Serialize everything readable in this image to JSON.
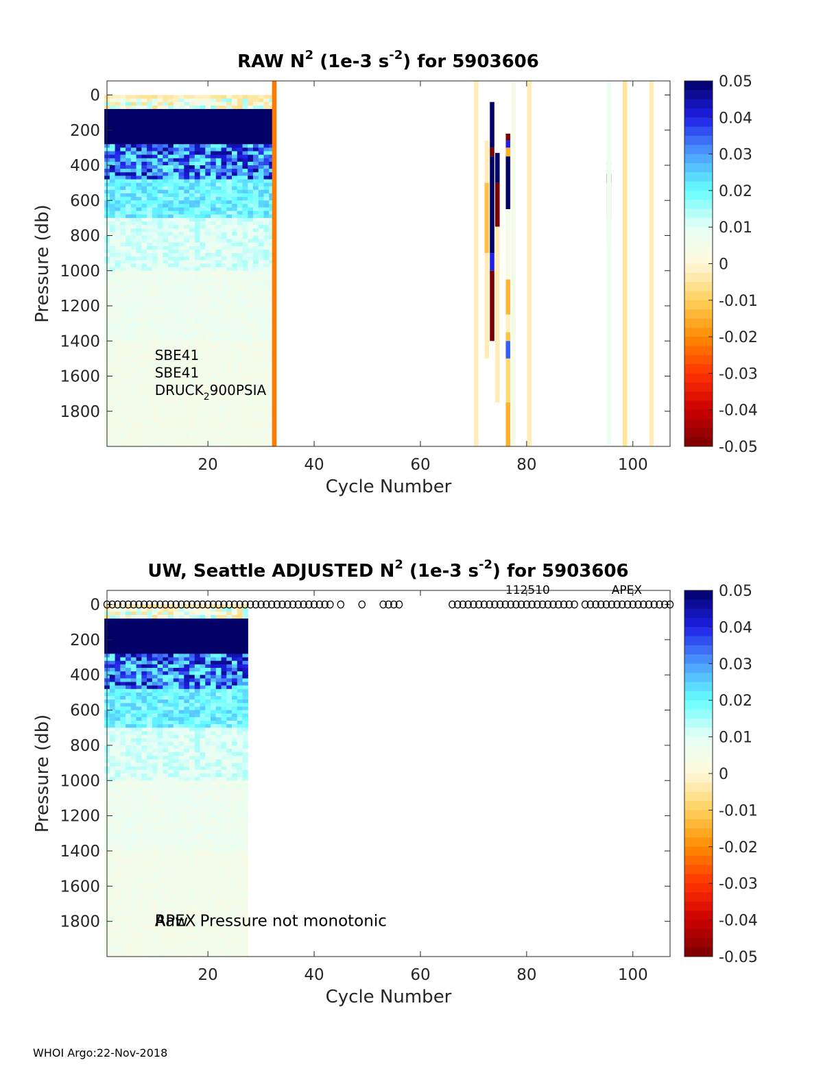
{
  "footer": "WHOI Argo:22-Nov-2018",
  "colorbar": {
    "ticks": [
      "0.05",
      "0.04",
      "0.03",
      "0.02",
      "0.01",
      "0",
      "-0.01",
      "-0.02",
      "-0.03",
      "-0.04",
      "-0.05"
    ],
    "stops": [
      "#7a0000",
      "#cc0000",
      "#ff3300",
      "#ff8c00",
      "#ffd15c",
      "#fff8dc",
      "#e6fff6",
      "#66ffff",
      "#4d9eff",
      "#1f1fe6",
      "#000066"
    ]
  },
  "chart_data": [
    {
      "type": "heatmap",
      "title_parts": [
        "RAW N",
        "2",
        " (1e-3 s",
        "-2",
        ") for 5903606"
      ],
      "xlabel": "Cycle Number",
      "ylabel": "Pressure (db)",
      "xlim": [
        1,
        107
      ],
      "ylim": [
        2000,
        -80
      ],
      "xticks": [
        "20",
        "40",
        "60",
        "80",
        "100"
      ],
      "yticks": [
        "0",
        "200",
        "400",
        "600",
        "800",
        "1000",
        "1200",
        "1400",
        "1600",
        "1800"
      ],
      "clim": [
        -0.05,
        0.05
      ],
      "dense_block": {
        "cycles": [
          1,
          32
        ],
        "pressure": [
          0,
          2000
        ]
      },
      "columns": [
        {
          "cycle": 32.5,
          "segments": [
            {
              "p": [
                -80,
                2000
              ],
              "v": -0.022
            }
          ]
        },
        {
          "cycle": 70.5,
          "segments": [
            {
              "p": [
                -80,
                2000
              ],
              "v": -0.003
            }
          ]
        },
        {
          "cycle": 72.5,
          "segments": [
            {
              "p": [
                260,
                500
              ],
              "v": -0.003
            },
            {
              "p": [
                500,
                900
              ],
              "v": -0.012
            },
            {
              "p": [
                900,
                1500
              ],
              "v": -0.003
            }
          ]
        },
        {
          "cycle": 73.5,
          "segments": [
            {
              "p": [
                40,
                300
              ],
              "v": 0.05
            },
            {
              "p": [
                300,
                350
              ],
              "v": -0.05
            },
            {
              "p": [
                350,
                900
              ],
              "v": 0.05
            },
            {
              "p": [
                900,
                1000
              ],
              "v": 0.04
            },
            {
              "p": [
                1000,
                1400
              ],
              "v": -0.05
            }
          ]
        },
        {
          "cycle": 74.5,
          "segments": [
            {
              "p": [
                330,
                500
              ],
              "v": 0.05
            },
            {
              "p": [
                500,
                750
              ],
              "v": -0.05
            },
            {
              "p": [
                750,
                1750
              ],
              "v": -0.003
            }
          ]
        },
        {
          "cycle": 76.5,
          "segments": [
            {
              "p": [
                220,
                260
              ],
              "v": -0.05
            },
            {
              "p": [
                260,
                300
              ],
              "v": 0.04
            },
            {
              "p": [
                300,
                350
              ],
              "v": -0.015
            },
            {
              "p": [
                350,
                650
              ],
              "v": 0.05
            },
            {
              "p": [
                650,
                1050
              ],
              "v": 0.004
            },
            {
              "p": [
                1050,
                1250
              ],
              "v": -0.014
            },
            {
              "p": [
                1250,
                1350
              ],
              "v": -0.002
            },
            {
              "p": [
                1350,
                1400
              ],
              "v": -0.012
            },
            {
              "p": [
                1400,
                1500
              ],
              "v": 0.035
            },
            {
              "p": [
                1500,
                1750
              ],
              "v": -0.008
            },
            {
              "p": [
                1750,
                2000
              ],
              "v": -0.015
            }
          ]
        },
        {
          "cycle": 77.5,
          "segments": [
            {
              "p": [
                -80,
                2000
              ],
              "v": 0.004
            }
          ]
        },
        {
          "cycle": 80.5,
          "segments": [
            {
              "p": [
                -80,
                2000
              ],
              "v": -0.003
            }
          ]
        },
        {
          "cycle": 95.5,
          "segments": [
            {
              "p": [
                380,
                400
              ],
              "v": -0.012
            },
            {
              "p": [
                400,
                450
              ],
              "v": 0.012
            },
            {
              "p": [
                450,
                500
              ],
              "v": -0.05
            },
            {
              "p": [
                500,
                700
              ],
              "v": -0.013
            },
            {
              "p": [
                700,
                850
              ],
              "v": -0.003
            }
          ]
        },
        {
          "cycle": 95.5,
          "segments": [
            {
              "p": [
                -80,
                2000
              ],
              "v": 0.008
            }
          ],
          "narrow": true
        },
        {
          "cycle": 98.5,
          "segments": [
            {
              "p": [
                -80,
                2000
              ],
              "v": -0.005
            }
          ]
        },
        {
          "cycle": 103.5,
          "segments": [
            {
              "p": [
                -80,
                2000
              ],
              "v": -0.003
            }
          ]
        }
      ],
      "annotations": [
        {
          "text_parts": [
            "SBE41"
          ],
          "cycle": 10,
          "pressure": 1480
        },
        {
          "text_parts": [
            "SBE41"
          ],
          "cycle": 10,
          "pressure": 1580
        },
        {
          "text_parts": [
            "DRUCK",
            "2",
            "900PSIA"
          ],
          "cycle": 10,
          "pressure": 1680
        }
      ]
    },
    {
      "type": "heatmap",
      "title_parts": [
        "UW, Seattle  ADJUSTED N",
        "2",
        " (1e-3 s",
        "-2",
        ") for 5903606"
      ],
      "xlabel": "Cycle Number",
      "ylabel": "Pressure (db)",
      "xlim": [
        1,
        107
      ],
      "ylim": [
        2000,
        -80
      ],
      "xticks": [
        "20",
        "40",
        "60",
        "80",
        "100"
      ],
      "yticks": [
        "0",
        "200",
        "400",
        "600",
        "800",
        "1000",
        "1200",
        "1400",
        "1600",
        "1800"
      ],
      "clim": [
        -0.05,
        0.05
      ],
      "dense_block": {
        "cycles": [
          1,
          27
        ],
        "pressure": [
          0,
          2000
        ]
      },
      "columns": [],
      "markers_at_pressure": 0,
      "marker_cycles": [
        1,
        2,
        3,
        4,
        5,
        6,
        7,
        8,
        9,
        10,
        11,
        12,
        13,
        14,
        15,
        16,
        17,
        18,
        19,
        20,
        21,
        22,
        23,
        24,
        25,
        26,
        27,
        28,
        29,
        30,
        31,
        32,
        33,
        34,
        35,
        36,
        37,
        38,
        39,
        40,
        41,
        42,
        43,
        45,
        49,
        53,
        54,
        55,
        56,
        66,
        67,
        68,
        69,
        70,
        71,
        72,
        73,
        74,
        75,
        76,
        77,
        78,
        79,
        80,
        81,
        82,
        83,
        84,
        85,
        86,
        87,
        88,
        89,
        91,
        92,
        93,
        94,
        95,
        96,
        97,
        98,
        99,
        100,
        101,
        102,
        103,
        104,
        105,
        106,
        107
      ],
      "annotations": [
        {
          "text_parts": [
            "112510"
          ],
          "cycle": 76,
          "pressure": -88,
          "size": 17
        },
        {
          "text_parts": [
            "APEX"
          ],
          "cycle": 96,
          "pressure": -88,
          "size": 17
        },
        {
          "text_parts": [
            "APEX"
          ],
          "cycle": 10,
          "pressure": 1800,
          "size": 23
        },
        {
          "text_parts": [
            "Raw"
          ],
          "cycle": 10,
          "pressure": 1800,
          "size": 23
        },
        {
          "text_parts": [
            "Pressure not monotonic"
          ],
          "cycle": 18.5,
          "pressure": 1800,
          "size": 23
        }
      ]
    }
  ]
}
